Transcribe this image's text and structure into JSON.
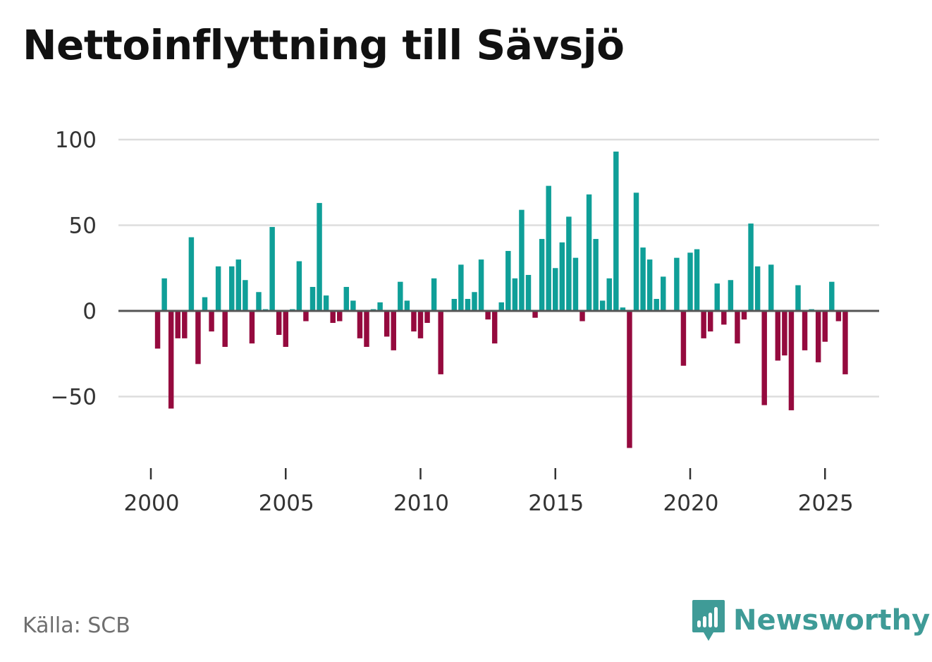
{
  "title": "Nettoinflyttning till Sävsjö",
  "source": "Källa: SCB",
  "brand": "Newsworthy",
  "colors": {
    "positive": "#0f9f98",
    "negative": "#950a3e",
    "grid": "#dddddd",
    "zero_line": "#555555",
    "text": "#333333",
    "brand": "#3f9b97"
  },
  "chart_data": {
    "type": "bar",
    "title": "Nettoinflyttning till Sävsjö",
    "xlabel": "",
    "ylabel": "",
    "x_start": 2000,
    "periods_per_year": 4,
    "first_period_index": 1,
    "xlim": [
      1999.6,
      2027.1
    ],
    "ylim": [
      -90,
      105
    ],
    "yticks": [
      100,
      50,
      0,
      -50
    ],
    "ytick_labels": [
      "100",
      "50",
      "0",
      "−50"
    ],
    "xticks": [
      2000,
      2005,
      2010,
      2015,
      2020,
      2025
    ],
    "xtick_labels": [
      "2000",
      "2005",
      "2010",
      "2015",
      "2020",
      "2025"
    ],
    "grid": true,
    "values": [
      -22,
      19,
      -57,
      -16,
      -16,
      43,
      -31,
      8,
      -12,
      26,
      -21,
      26,
      30,
      18,
      -19,
      11,
      1,
      49,
      -14,
      -21,
      1,
      29,
      -6,
      14,
      63,
      9,
      -7,
      -6,
      14,
      6,
      -16,
      -21,
      1,
      5,
      -15,
      -23,
      17,
      6,
      -12,
      -16,
      -7,
      19,
      -37,
      0,
      7,
      27,
      7,
      11,
      30,
      -5,
      -19,
      5,
      35,
      19,
      59,
      21,
      -4,
      42,
      73,
      25,
      40,
      55,
      31,
      -6,
      68,
      42,
      6,
      19,
      93,
      2,
      -80,
      69,
      37,
      30,
      7,
      20,
      0,
      31,
      -32,
      34,
      36,
      -16,
      -12,
      16,
      -8,
      18,
      -19,
      -5,
      51,
      26,
      -55,
      27,
      -29,
      -26,
      -58,
      15,
      -23,
      1,
      -30,
      -18,
      17,
      -6,
      -37
    ]
  }
}
